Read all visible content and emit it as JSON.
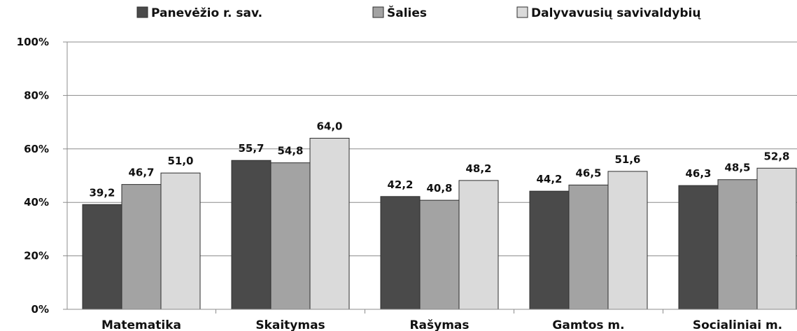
{
  "chart_data": {
    "type": "bar",
    "categories": [
      "Matematika",
      "Skaitymas",
      "Rašymas",
      "Gamtos m.",
      "Socialiniai m."
    ],
    "series": [
      {
        "name": "Panevėžio r. sav.",
        "values": [
          39.2,
          55.7,
          42.2,
          44.2,
          46.3
        ],
        "labels": [
          "39,2",
          "55,7",
          "42,2",
          "44,2",
          "46,3"
        ],
        "color": "#4a4a4a"
      },
      {
        "name": "Šalies",
        "values": [
          46.7,
          54.8,
          40.8,
          46.5,
          48.5
        ],
        "labels": [
          "46,7",
          "54,8",
          "40,8",
          "46,5",
          "48,5"
        ],
        "color": "#a3a3a3"
      },
      {
        "name": "Dalyvavusių savivaldybių",
        "values": [
          51.0,
          64.0,
          48.2,
          51.6,
          52.8
        ],
        "labels": [
          "51,0",
          "64,0",
          "48,2",
          "51,6",
          "52,8"
        ],
        "color": "#dadada"
      }
    ],
    "yticks": [
      {
        "value": 0,
        "label": "0%"
      },
      {
        "value": 20,
        "label": "20%"
      },
      {
        "value": 40,
        "label": "40%"
      },
      {
        "value": 60,
        "label": "60%"
      },
      {
        "value": 80,
        "label": "80%"
      },
      {
        "value": 100,
        "label": "100%"
      }
    ],
    "ylim": [
      0,
      100
    ],
    "grid": true,
    "legend_position": "top-center",
    "colors": {
      "gridline": "#8c8c8c",
      "axis": "#8c8c8c",
      "bar_border": "#2e2e2e"
    }
  }
}
